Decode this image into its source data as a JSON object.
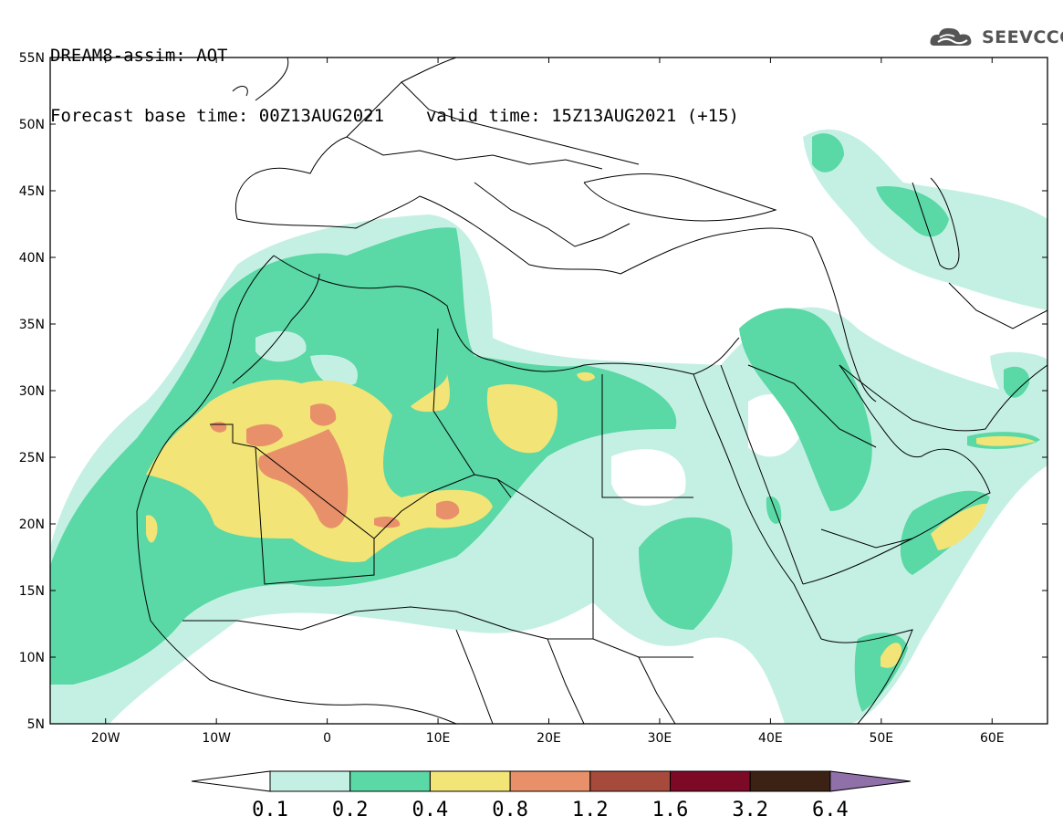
{
  "title": {
    "line1": "DREAM8-assim: AOT",
    "base_label": "Forecast base time: 00Z13AUG2021",
    "valid_label": "valid time: 15Z13AUG2021 (+15)"
  },
  "logo": {
    "text": "SEEVCCC",
    "icon": "cloud-logo-icon",
    "color": "#555555"
  },
  "map": {
    "lon_range": [
      -25,
      65
    ],
    "lat_range": [
      5,
      55
    ],
    "lat_labels": [
      "55N",
      "50N",
      "45N",
      "40N",
      "35N",
      "30N",
      "25N",
      "20N",
      "15N",
      "10N",
      "5N"
    ],
    "lon_labels": [
      "20W",
      "10W",
      "0",
      "10E",
      "20E",
      "30E",
      "40E",
      "50E",
      "60E"
    ]
  },
  "colorbar": {
    "labels": [
      "0.1",
      "0.2",
      "0.4",
      "0.8",
      "1.2",
      "1.6",
      "3.2",
      "6.4"
    ],
    "colors": [
      "#c4f0e4",
      "#5ad8a6",
      "#f2e476",
      "#e8906a",
      "#a64b3c",
      "#7c0a26",
      "#3b2214",
      "#9070a8"
    ]
  }
}
